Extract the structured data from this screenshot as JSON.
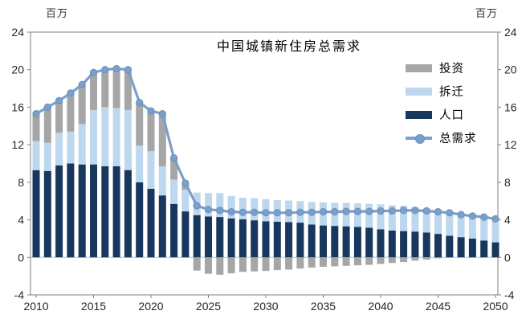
{
  "chart_data": {
    "type": "bar",
    "subtype": "stacked-bar-with-line-overlay",
    "title": "中国城镇新住房总需求",
    "y_unit": "百万",
    "ylim": [
      -4,
      24
    ],
    "y_ticks": [
      -4,
      0,
      4,
      8,
      12,
      16,
      20,
      24
    ],
    "x": [
      2010,
      2011,
      2012,
      2013,
      2014,
      2015,
      2016,
      2017,
      2018,
      2019,
      2020,
      2021,
      2022,
      2023,
      2024,
      2025,
      2026,
      2027,
      2028,
      2029,
      2030,
      2031,
      2032,
      2033,
      2034,
      2035,
      2036,
      2037,
      2038,
      2039,
      2040,
      2041,
      2042,
      2043,
      2044,
      2045,
      2046,
      2047,
      2048,
      2049,
      2050
    ],
    "x_tick_labels": [
      "2010",
      "2015",
      "2020",
      "2025",
      "2030",
      "2035",
      "2040",
      "2045",
      "2050"
    ],
    "grid": false,
    "legend_position": "inside-top-right",
    "stack_order_bottom_to_top": [
      "人口",
      "拆迁",
      "投资"
    ],
    "series": [
      {
        "name": "投资",
        "type": "bar",
        "color": "#a6a6a6",
        "values": [
          2.9,
          3.8,
          3.4,
          4.1,
          4.2,
          4.0,
          4.0,
          4.2,
          4.3,
          4.6,
          4.3,
          5.6,
          2.3,
          0.7,
          -1.4,
          -1.75,
          -1.85,
          -1.7,
          -1.55,
          -1.5,
          -1.45,
          -1.35,
          -1.3,
          -1.2,
          -1.1,
          -1.0,
          -0.95,
          -0.9,
          -0.85,
          -0.8,
          -0.7,
          -0.6,
          -0.5,
          -0.35,
          -0.25,
          -0.1,
          0,
          0,
          0,
          0,
          0
        ]
      },
      {
        "name": "拆迁",
        "type": "bar",
        "color": "#bdd7ee",
        "values": [
          3.1,
          3.0,
          3.5,
          3.4,
          4.3,
          5.8,
          6.3,
          6.2,
          6.4,
          3.9,
          4.0,
          3.1,
          2.6,
          2.3,
          2.4,
          2.5,
          2.55,
          2.4,
          2.3,
          2.35,
          2.35,
          2.3,
          2.3,
          2.3,
          2.4,
          2.45,
          2.45,
          2.5,
          2.5,
          2.55,
          2.65,
          2.7,
          2.7,
          2.6,
          2.55,
          2.45,
          2.45,
          2.4,
          2.4,
          2.5,
          2.5
        ]
      },
      {
        "name": "人口",
        "type": "bar",
        "color": "#17375e",
        "values": [
          9.3,
          9.2,
          9.8,
          10.0,
          9.9,
          9.9,
          9.7,
          9.7,
          9.3,
          8.0,
          7.3,
          6.6,
          5.7,
          4.9,
          4.5,
          4.35,
          4.3,
          4.15,
          4.05,
          3.95,
          3.85,
          3.8,
          3.75,
          3.7,
          3.5,
          3.4,
          3.35,
          3.3,
          3.25,
          3.15,
          3.0,
          2.85,
          2.8,
          2.75,
          2.65,
          2.5,
          2.3,
          2.15,
          2.0,
          1.8,
          1.6
        ]
      },
      {
        "name": "总需求",
        "type": "line",
        "color": "#7b9fca",
        "values": [
          15.3,
          16.0,
          16.7,
          17.5,
          18.4,
          19.7,
          20.0,
          20.1,
          20.0,
          16.5,
          15.6,
          15.3,
          10.6,
          7.9,
          5.5,
          5.1,
          5.0,
          4.85,
          4.8,
          4.8,
          4.75,
          4.75,
          4.75,
          4.8,
          4.8,
          4.85,
          4.85,
          4.9,
          4.9,
          4.9,
          4.95,
          4.95,
          5.0,
          5.0,
          4.95,
          4.85,
          4.75,
          4.55,
          4.4,
          4.3,
          4.1
        ]
      }
    ],
    "colors": {
      "axis": "#7f7f7f",
      "zero_line": "#c0c0c0",
      "tick_text": "#262626",
      "line_marker_stroke": "#6990bd",
      "background": "#ffffff"
    }
  }
}
